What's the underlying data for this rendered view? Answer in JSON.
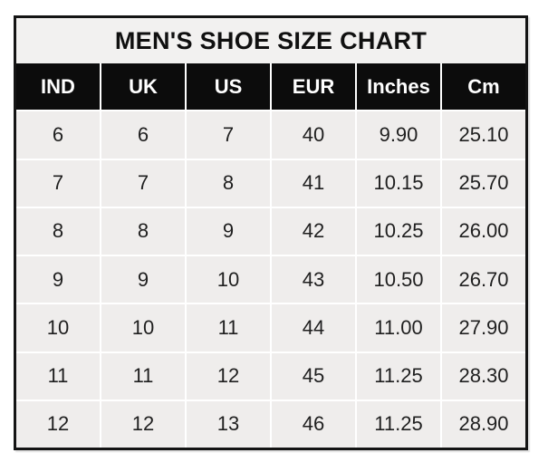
{
  "chart_data": {
    "type": "table",
    "title": "MEN'S SHOE SIZE CHART",
    "columns": [
      "IND",
      "UK",
      "US",
      "EUR",
      "Inches",
      "Cm"
    ],
    "rows": [
      [
        "6",
        "6",
        "7",
        "40",
        "9.90",
        "25.10"
      ],
      [
        "7",
        "7",
        "8",
        "41",
        "10.15",
        "25.70"
      ],
      [
        "8",
        "8",
        "9",
        "42",
        "10.25",
        "26.00"
      ],
      [
        "9",
        "9",
        "10",
        "43",
        "10.50",
        "26.70"
      ],
      [
        "10",
        "10",
        "11",
        "44",
        "11.00",
        "27.90"
      ],
      [
        "11",
        "11",
        "12",
        "45",
        "11.25",
        "28.30"
      ],
      [
        "12",
        "12",
        "13",
        "46",
        "11.25",
        "28.90"
      ]
    ]
  },
  "colors": {
    "outer_border": "#141414",
    "title_background": "#f2f1f0",
    "header_background": "#0c0c0c",
    "header_text": "#ffffff",
    "cell_background": "#efedec",
    "cell_text": "#1f1f1f",
    "gridline": "#ffffff"
  }
}
